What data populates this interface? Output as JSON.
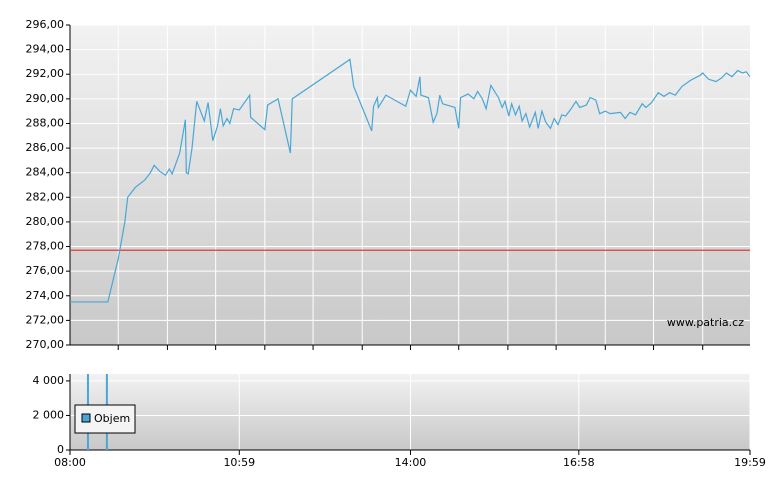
{
  "chart_data": [
    {
      "type": "line",
      "x": [
        "08:00",
        "08:40",
        "08:51",
        "08:58",
        "09:01",
        "09:09",
        "09:19",
        "09:25",
        "09:29",
        "09:35",
        "09:41",
        "09:45",
        "09:48",
        "09:56",
        "10:02",
        "10:03",
        "10:05",
        "10:09",
        "10:14",
        "10:22",
        "10:26",
        "10:31",
        "10:36",
        "10:39",
        "10:42",
        "10:46",
        "10:49",
        "10:53",
        "10:59",
        "11:10",
        "11:11",
        "11:26",
        "11:29",
        "11:40",
        "11:53",
        "11:55",
        "12:56",
        "13:00",
        "13:19",
        "13:21",
        "13:25",
        "13:26",
        "13:34",
        "13:55",
        "14:00",
        "14:06",
        "14:10",
        "14:11",
        "14:19",
        "14:24",
        "14:28",
        "14:31",
        "14:34",
        "14:47",
        "14:51",
        "14:53",
        "15:01",
        "15:07",
        "15:11",
        "15:16",
        "15:20",
        "15:25",
        "15:33",
        "15:37",
        "15:40",
        "15:44",
        "15:47",
        "15:51",
        "15:55",
        "15:58",
        "16:02",
        "16:06",
        "16:12",
        "16:15",
        "16:19",
        "16:23",
        "16:28",
        "16:32",
        "16:36",
        "16:40",
        "16:44",
        "16:49",
        "16:55",
        "16:59",
        "17:06",
        "17:10",
        "17:16",
        "17:20",
        "17:26",
        "17:31",
        "17:42",
        "17:47",
        "17:52",
        "17:58",
        "18:05",
        "18:09",
        "18:15",
        "18:22",
        "18:28",
        "18:34",
        "18:40",
        "18:47",
        "18:56",
        "19:06",
        "19:09",
        "19:15",
        "19:23",
        "19:29",
        "19:34",
        "19:40",
        "19:46",
        "19:51",
        "19:55",
        "19:59"
      ],
      "series": [
        {
          "color": "#4aa6d6",
          "values": [
            273.5,
            273.5,
            277,
            280,
            282,
            282.8,
            283.4,
            284,
            284.6,
            284.1,
            283.8,
            284.3,
            283.9,
            285.6,
            288.3,
            284,
            283.9,
            286,
            289.8,
            288.2,
            289.7,
            286.6,
            287.8,
            289.2,
            287.8,
            288.4,
            288,
            289.2,
            289.1,
            290.3,
            288.5,
            287.5,
            289.5,
            290,
            285.6,
            290,
            293.2,
            291,
            287.4,
            289.4,
            290.1,
            289.3,
            290.3,
            289.4,
            290.7,
            290.2,
            291.8,
            290.3,
            290.1,
            288.1,
            288.8,
            290.3,
            289.6,
            289.3,
            287.6,
            290.1,
            290.4,
            290,
            290.6,
            290,
            289.2,
            291.1,
            290.1,
            289.3,
            289.8,
            288.6,
            289.6,
            288.7,
            289.4,
            288.2,
            288.8,
            287.7,
            288.9,
            287.6,
            289,
            288.1,
            287.6,
            288.4,
            287.9,
            288.7,
            288.6,
            289.1,
            289.8,
            289.3,
            289.5,
            290.1,
            289.9,
            288.8,
            289,
            288.8,
            288.9,
            288.4,
            288.9,
            288.7,
            289.6,
            289.3,
            289.7,
            290.5,
            290.2,
            290.5,
            290.3,
            291,
            291.5,
            291.9,
            292.1,
            291.6,
            291.4,
            291.7,
            292.1,
            291.8,
            292.3,
            292.1,
            292.2,
            291.8
          ]
        }
      ],
      "reference": {
        "value": 277.7,
        "color": "#e03a3a"
      },
      "xlim": [
        "08:00",
        "19:59"
      ],
      "xgrid": [
        "08:51",
        "09:43",
        "10:34",
        "11:26",
        "12:17",
        "13:09",
        "14:00",
        "14:51",
        "15:43",
        "16:34",
        "17:26",
        "18:17",
        "19:09"
      ],
      "ylim": [
        270,
        296
      ],
      "yticks": [
        {
          "value": 270,
          "label": "270,00"
        },
        {
          "value": 272,
          "label": "272,00"
        },
        {
          "value": 274,
          "label": "274,00"
        },
        {
          "value": 276,
          "label": "276,00"
        },
        {
          "value": 278,
          "label": "278,00"
        },
        {
          "value": 280,
          "label": "280,00"
        },
        {
          "value": 282,
          "label": "282,00"
        },
        {
          "value": 284,
          "label": "284,00"
        },
        {
          "value": 286,
          "label": "286,00"
        },
        {
          "value": 288,
          "label": "288,00"
        },
        {
          "value": 290,
          "label": "290,00"
        },
        {
          "value": 292,
          "label": "292,00"
        },
        {
          "value": 294,
          "label": "294,00"
        },
        {
          "value": 296,
          "label": "296,00"
        }
      ],
      "grid": true,
      "watermark": "www.patria.cz"
    },
    {
      "type": "bar",
      "x": [
        "08:19",
        "08:39"
      ],
      "series": [
        {
          "name": "Objem",
          "color": "#4aa6d6",
          "values": [
            4400,
            4400
          ]
        }
      ],
      "xlim": [
        "08:00",
        "19:59"
      ],
      "xticks": [
        "08:00",
        "10:59",
        "14:00",
        "16:58",
        "19:59"
      ],
      "ylim": [
        0,
        4400
      ],
      "yticks": [
        0,
        {
          "value": 2000,
          "label": "2 000"
        },
        {
          "value": 4000,
          "label": "4 000"
        }
      ],
      "grid": true,
      "legend": "upper left"
    }
  ]
}
